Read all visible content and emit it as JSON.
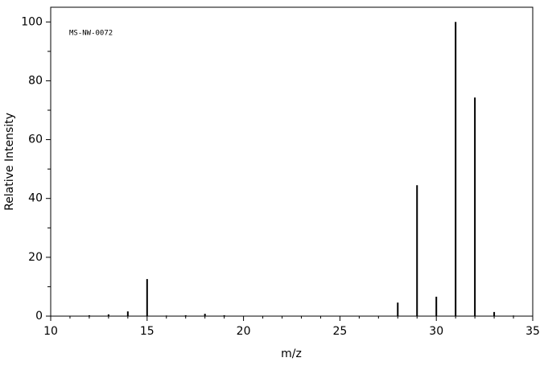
{
  "chart_data": {
    "type": "stem",
    "annotation": "MS-NW-0072",
    "x_label": "m/z",
    "y_label": "Relative Intensity",
    "x": [
      12,
      13,
      14,
      15,
      16,
      17,
      18,
      19,
      28,
      29,
      30,
      31,
      32,
      33,
      34
    ],
    "values": [
      0.3,
      0.6,
      1.6,
      12.6,
      0.2,
      0.3,
      0.8,
      0.3,
      4.6,
      44.5,
      6.6,
      100,
      74.3,
      1.4,
      0.2
    ],
    "color": "#000000",
    "xlim": [
      10,
      35
    ],
    "ylim": [
      0,
      105
    ],
    "xticks": [
      10,
      15,
      20,
      25,
      30,
      35
    ],
    "xminorticks": [
      11,
      12,
      13,
      14,
      16,
      17,
      18,
      19,
      21,
      22,
      23,
      24,
      26,
      27,
      28,
      29,
      31,
      32,
      33,
      34
    ],
    "yticks": [
      0,
      20,
      40,
      60,
      80,
      100
    ],
    "yminorticks": [
      10,
      30,
      50,
      70,
      90
    ]
  }
}
